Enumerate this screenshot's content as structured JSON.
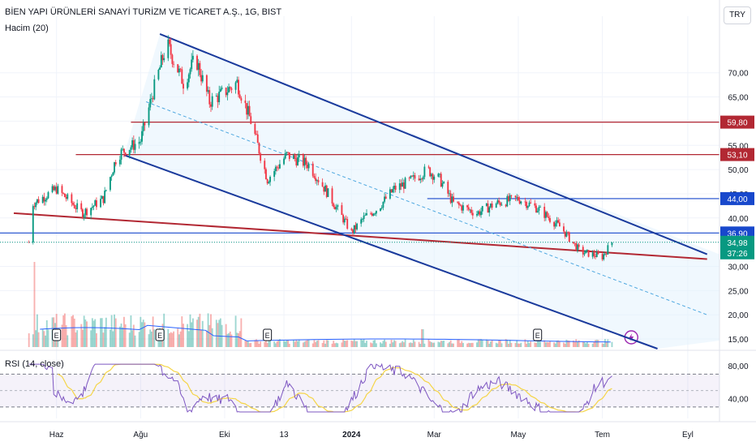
{
  "header": {
    "title": "BİEN YAPI ÜRÜNLERİ SANAYİ TURİZM VE TİCARET A.Ş., 1G, BIST",
    "volume_indicator": "Hacim (20)",
    "rsi_indicator": "RSI (14, close)",
    "currency": "TRY"
  },
  "chart_data": {
    "type": "candlestick",
    "price_axis": {
      "ticks": [
        "70,00",
        "65,00",
        "60,00",
        "55,00",
        "50,00",
        "45,00",
        "40,00",
        "35,00",
        "30,00",
        "25,00",
        "20,00",
        "15,00"
      ],
      "ylim": [
        13,
        80
      ]
    },
    "x_axis": {
      "ticks": [
        "Haz",
        "Ağu",
        "Eki",
        "13",
        "2024",
        "Mar",
        "May",
        "Tem",
        "Eyl"
      ]
    },
    "price_path": [
      [
        "2023-05-15",
        43
      ],
      [
        "2023-06-01",
        46
      ],
      [
        "2023-06-20",
        41
      ],
      [
        "2023-07-05",
        44
      ],
      [
        "2023-07-15",
        53
      ],
      [
        "2023-08-01",
        56
      ],
      [
        "2023-08-10",
        66
      ],
      [
        "2023-08-20",
        76
      ],
      [
        "2023-09-01",
        68
      ],
      [
        "2023-09-10",
        73
      ],
      [
        "2023-09-20",
        64
      ],
      [
        "2023-10-01",
        66
      ],
      [
        "2023-10-10",
        68
      ],
      [
        "2023-10-20",
        60
      ],
      [
        "2023-11-01",
        48
      ],
      [
        "2023-11-15",
        53
      ],
      [
        "2023-12-01",
        51
      ],
      [
        "2023-12-15",
        45
      ],
      [
        "2024-01-01",
        37
      ],
      [
        "2024-01-10",
        40
      ],
      [
        "2024-01-20",
        42
      ],
      [
        "2024-02-01",
        46
      ],
      [
        "2024-02-15",
        48
      ],
      [
        "2024-02-25",
        50
      ],
      [
        "2024-03-05",
        48
      ],
      [
        "2024-03-15",
        43
      ],
      [
        "2024-04-01",
        41
      ],
      [
        "2024-04-15",
        43
      ],
      [
        "2024-05-01",
        44
      ],
      [
        "2024-05-15",
        42
      ],
      [
        "2024-06-01",
        38
      ],
      [
        "2024-06-15",
        33
      ],
      [
        "2024-07-01",
        32
      ],
      [
        "2024-07-08",
        34.98
      ]
    ],
    "horizontal_levels": [
      {
        "value": 59.8,
        "label": "59,80",
        "color": "#b22833"
      },
      {
        "value": 53.1,
        "label": "53,10",
        "color": "#b22833"
      },
      {
        "value": 44.0,
        "label": "44,00",
        "color": "#1848cc"
      },
      {
        "value": 36.9,
        "label": "36,90",
        "color": "#1848cc"
      }
    ],
    "last_price": {
      "value": 34.98,
      "label": "34,98",
      "countdown": "37:26",
      "color": "#089981"
    },
    "channel": {
      "upper": [
        [
          "2023-08-15",
          78
        ],
        [
          "2024-09-15",
          32.5
        ]
      ],
      "lower": [
        [
          "2023-07-20",
          53
        ],
        [
          "2024-08-10",
          13
        ]
      ],
      "mid": [
        [
          "2023-08-05",
          64
        ],
        [
          "2024-09-15",
          20
        ]
      ]
    },
    "trendline": [
      [
        "2023-05-01",
        41
      ],
      [
        "2024-09-15",
        31.5
      ]
    ],
    "earnings_markers": {
      "label": "E",
      "dates": [
        "2023-06-01",
        "2023-08-15",
        "2023-11-01",
        "2024-05-15"
      ]
    },
    "rsi": {
      "levels": [
        {
          "value": 80,
          "label": "80,00"
        },
        {
          "value": 40,
          "label": "40,00"
        }
      ],
      "ylim": [
        20,
        95
      ]
    },
    "grid": true
  }
}
